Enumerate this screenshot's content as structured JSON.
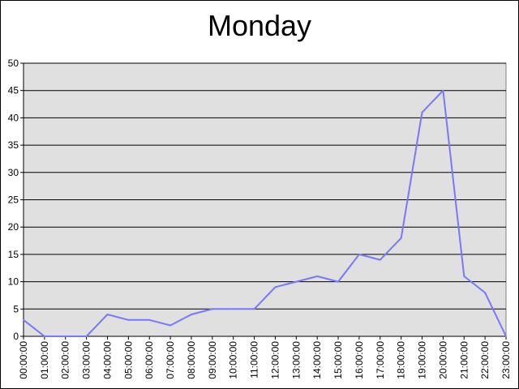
{
  "chart_data": {
    "type": "line",
    "title": "Monday",
    "xlabel": "",
    "ylabel": "",
    "ylim": [
      0,
      50
    ],
    "y_ticks": [
      0,
      5,
      10,
      15,
      20,
      25,
      30,
      35,
      40,
      45,
      50
    ],
    "grid": true,
    "legend": "none",
    "categories": [
      "00:00:00",
      "01:00:00",
      "02:00:00",
      "03:00:00",
      "04:00:00",
      "05:00:00",
      "06:00:00",
      "07:00:00",
      "08:00:00",
      "09:00:00",
      "10:00:00",
      "11:00:00",
      "12:00:00",
      "13:00:00",
      "14:00:00",
      "15:00:00",
      "16:00:00",
      "17:00:00",
      "18:00:00",
      "19:00:00",
      "20:00:00",
      "21:00:00",
      "22:00:00",
      "23:00:00"
    ],
    "series": [
      {
        "values": [
          3,
          0,
          0,
          0,
          4,
          3,
          3,
          2,
          4,
          5,
          5,
          5,
          9,
          10,
          11,
          10,
          15,
          14,
          18,
          41,
          45,
          11,
          8,
          0
        ]
      }
    ],
    "colors": {
      "plot_background": "#e0e0e0",
      "line": "#7777ff",
      "grid": "#000000"
    }
  }
}
